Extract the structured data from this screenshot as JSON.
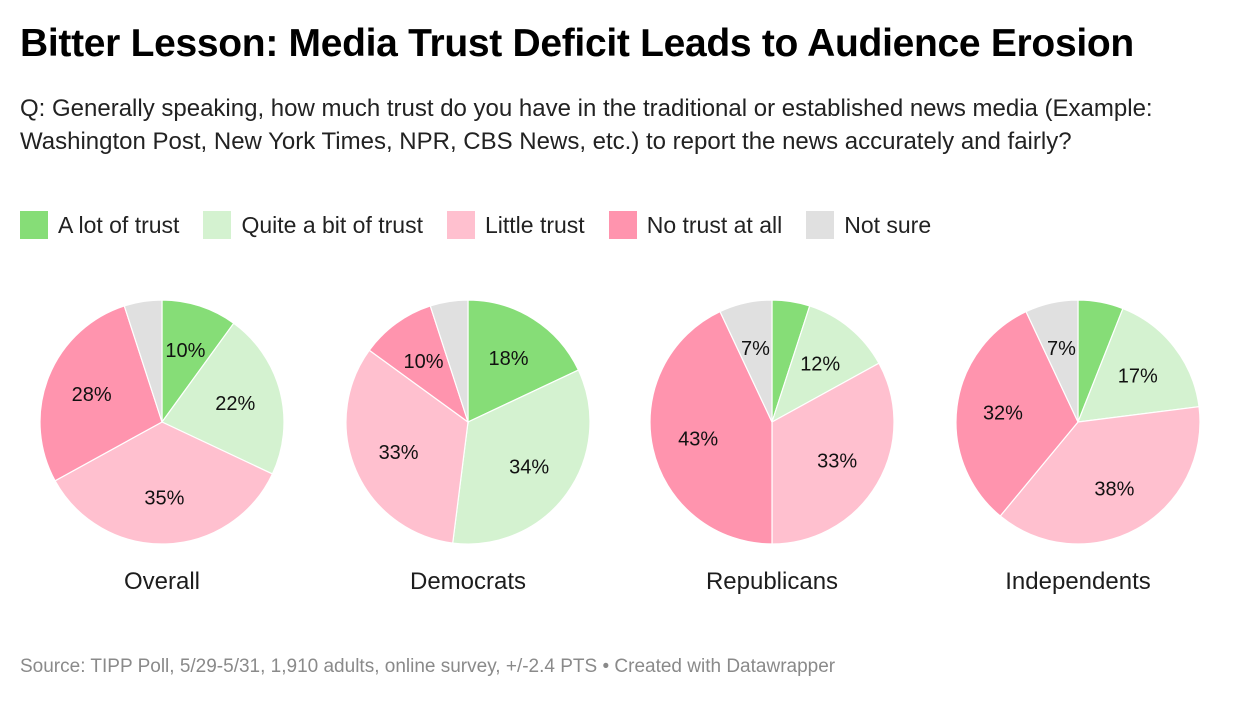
{
  "header": {
    "title": "Bitter Lesson: Media Trust Deficit Leads to Audience Erosion",
    "subtitle": "Q: Generally speaking, how much trust do you have in the traditional or established news media (Example: Washington Post, New York Times, NPR, CBS News, etc.) to report the news accurately and fairly?"
  },
  "legend": [
    {
      "label": "A lot of trust",
      "color": "#86dd77"
    },
    {
      "label": "Quite a bit of trust",
      "color": "#d4f2d0"
    },
    {
      "label": "Little trust",
      "color": "#ffc0cf"
    },
    {
      "label": "No trust at all",
      "color": "#ff94ae"
    },
    {
      "label": "Not sure",
      "color": "#e0e0e0"
    }
  ],
  "chart_data": {
    "type": "pie",
    "title": "Bitter Lesson: Media Trust Deficit Leads to Audience Erosion",
    "categories": [
      "A lot of trust",
      "Quite a bit of trust",
      "Little trust",
      "No trust at all",
      "Not sure"
    ],
    "colors": [
      "#86dd77",
      "#d4f2d0",
      "#ffc0cf",
      "#ff94ae",
      "#e0e0e0"
    ],
    "legend_position": "top-left",
    "series": [
      {
        "name": "Overall",
        "values": [
          10,
          22,
          35,
          28,
          5
        ],
        "labels": [
          "10%",
          "22%",
          "35%",
          "28%",
          ""
        ]
      },
      {
        "name": "Democrats",
        "values": [
          18,
          34,
          33,
          10,
          5
        ],
        "labels": [
          "18%",
          "34%",
          "33%",
          "10%",
          ""
        ]
      },
      {
        "name": "Republicans",
        "values": [
          5,
          12,
          33,
          43,
          7
        ],
        "labels": [
          "",
          "12%",
          "33%",
          "43%",
          "7%"
        ]
      },
      {
        "name": "Independents",
        "values": [
          6,
          17,
          38,
          32,
          7
        ],
        "labels": [
          "",
          "17%",
          "38%",
          "32%",
          "7%"
        ]
      }
    ]
  },
  "footer": {
    "source": "Source: TIPP Poll, 5/29-5/31, 1,910 adults, online survey, +/-2.4 PTS • Created with Datawrapper"
  }
}
